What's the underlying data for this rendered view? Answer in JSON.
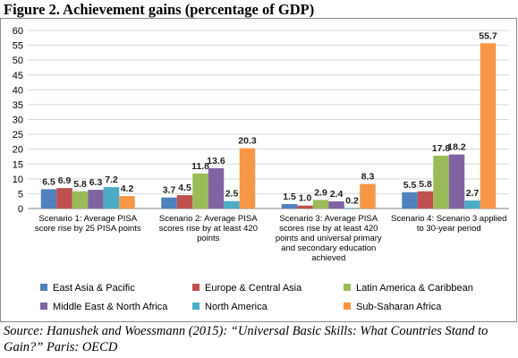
{
  "figure": {
    "title": "Figure 2. Achievement gains (percentage of GDP)",
    "source": "Source: Hanushek and Woessmann (2015): “Universal Basic Skills: What Countries Stand to Gain?” Paris: OECD"
  },
  "chart_data": {
    "type": "bar",
    "title": "",
    "xlabel": "",
    "ylabel": "",
    "ylim": [
      0,
      60
    ],
    "yticks": [
      0,
      5,
      10,
      15,
      20,
      25,
      30,
      35,
      40,
      45,
      50,
      55,
      60
    ],
    "grid": true,
    "legend_position": "bottom",
    "categories": [
      [
        "Scenario 1: Average PISA",
        "score rise by 25 PISA points"
      ],
      [
        "Scenario 2: Average PISA",
        "scores rise by at least 420",
        "points"
      ],
      [
        "Scenario 3: Average PISA",
        "scores rise by at least 420",
        "points and universal primary",
        "and secondary education",
        "achieved"
      ],
      [
        "Scenario 4: Scenario 3 applied",
        "to 30-year period"
      ]
    ],
    "series": [
      {
        "name": "East Asia & Pacific",
        "color": "#4f81bd",
        "values": [
          6.5,
          3.7,
          1.5,
          5.5
        ]
      },
      {
        "name": "Europe & Central Asia",
        "color": "#c0504d",
        "values": [
          6.9,
          4.5,
          1.0,
          5.8
        ]
      },
      {
        "name": "Latin America & Caribbean",
        "color": "#9bbb59",
        "values": [
          5.8,
          11.8,
          2.9,
          17.8
        ]
      },
      {
        "name": "Middle East & North Africa",
        "color": "#8064a2",
        "values": [
          6.3,
          13.6,
          2.4,
          18.2
        ]
      },
      {
        "name": "North America",
        "color": "#4bacc6",
        "values": [
          7.2,
          2.5,
          0.2,
          2.7
        ]
      },
      {
        "name": "Sub-Saharan Africa",
        "color": "#f79646",
        "values": [
          4.2,
          20.3,
          8.3,
          55.7
        ]
      }
    ]
  }
}
